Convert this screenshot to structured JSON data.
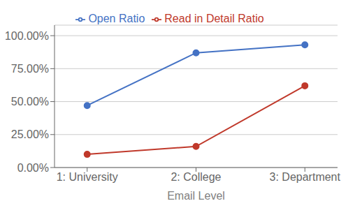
{
  "chart_data": {
    "type": "line",
    "xlabel": "Email Level",
    "x": [
      1,
      2,
      3
    ],
    "xlim": [
      0.7,
      3.3
    ],
    "xticks": [
      {
        "value": 1,
        "label": "1: University"
      },
      {
        "value": 2,
        "label": "2: College"
      },
      {
        "value": 3,
        "label": "3: Department"
      }
    ],
    "ylim": [
      0.0,
      1.08
    ],
    "yticks": [
      {
        "value": 0.0,
        "label": "0.00%"
      },
      {
        "value": 0.25,
        "label": "25.00%"
      },
      {
        "value": 0.5,
        "label": "50.00%"
      },
      {
        "value": 0.75,
        "label": "75.00%"
      },
      {
        "value": 1.0,
        "label": "100.00%"
      }
    ],
    "grid": "y",
    "legend": "top",
    "marker": "circle",
    "series": [
      {
        "name": "Open Ratio",
        "color": "#4472C4",
        "values": [
          0.47,
          0.87,
          0.93
        ]
      },
      {
        "name": "Read in Detail Ratio",
        "color": "#C0392B",
        "values": [
          0.1,
          0.16,
          0.62
        ]
      }
    ]
  }
}
